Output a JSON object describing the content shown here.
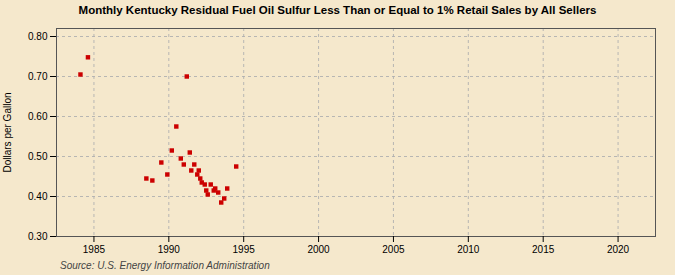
{
  "chart_data": {
    "type": "scatter",
    "title": "Monthly Kentucky Residual Fuel Oil Sulfur Less Than or Equal to 1% Retail Sales by All Sellers",
    "ylabel": "Dollars per Gallon",
    "source": "Source: U.S. Energy Information Administration",
    "color": "#cc0000",
    "marker": "square",
    "grid": true,
    "xlim": [
      1982.5,
      2022.5
    ],
    "ylim": [
      0.3,
      0.82
    ],
    "xticks": [
      1985,
      1990,
      1995,
      2000,
      2005,
      2010,
      2015,
      2020
    ],
    "yticks": [
      {
        "value": 0.3,
        "label": "0.30"
      },
      {
        "value": 0.4,
        "label": "0.40"
      },
      {
        "value": 0.5,
        "label": "0.50"
      },
      {
        "value": 0.6,
        "label": "0.60"
      },
      {
        "value": 0.7,
        "label": "0.70"
      },
      {
        "value": 0.8,
        "label": "0.80"
      }
    ],
    "x": [
      1984.1,
      1984.6,
      1988.5,
      1988.9,
      1989.5,
      1989.9,
      1990.2,
      1990.5,
      1990.8,
      1991.0,
      1991.2,
      1991.4,
      1991.5,
      1991.7,
      1991.9,
      1992.0,
      1992.1,
      1992.2,
      1992.4,
      1992.5,
      1992.6,
      1992.8,
      1993.0,
      1993.1,
      1993.3,
      1993.5,
      1993.7,
      1993.9,
      1994.5
    ],
    "values": [
      0.705,
      0.748,
      0.445,
      0.44,
      0.485,
      0.455,
      0.515,
      0.575,
      0.495,
      0.48,
      0.7,
      0.51,
      0.465,
      0.48,
      0.455,
      0.465,
      0.445,
      0.435,
      0.43,
      0.415,
      0.405,
      0.43,
      0.415,
      0.42,
      0.41,
      0.385,
      0.395,
      0.42,
      0.475
    ]
  }
}
